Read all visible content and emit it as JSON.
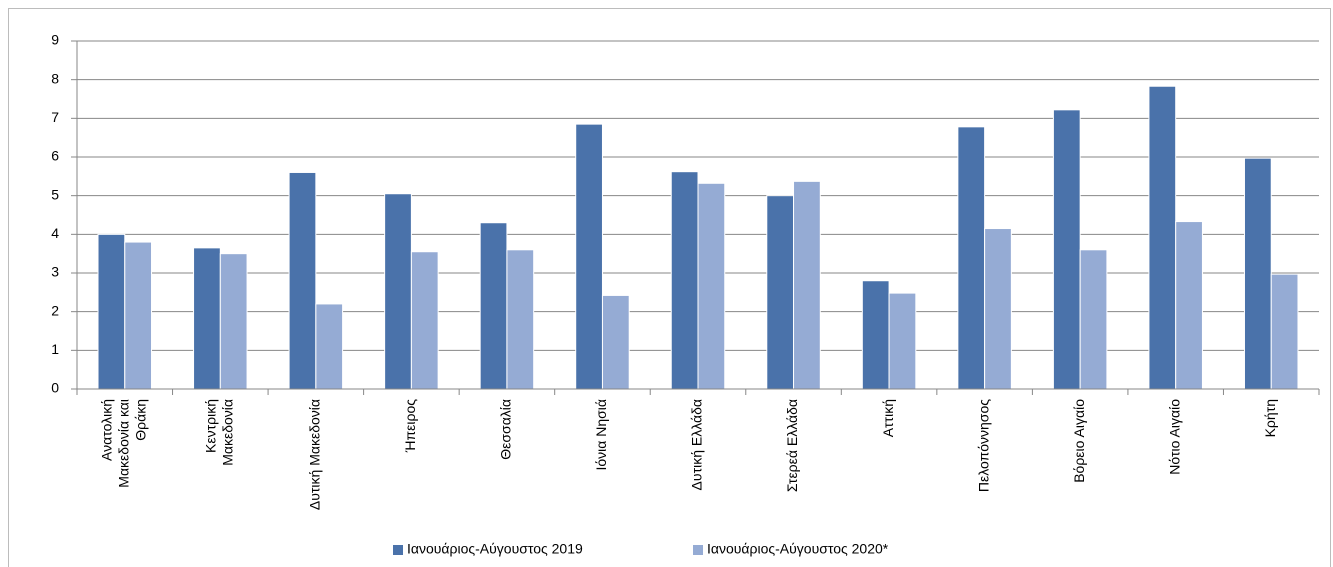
{
  "chart_data": {
    "type": "bar",
    "categories": [
      [
        "Ανατολική",
        "Μακεδονία και",
        "Θράκη"
      ],
      [
        "Κεντρική",
        "Μακεδονία"
      ],
      [
        "Δυτική Μακεδονία"
      ],
      [
        "Ήπειρος"
      ],
      [
        "Θεσσαλία"
      ],
      [
        "Ιόνια Νησιά"
      ],
      [
        "Δυτική Ελλάδα"
      ],
      [
        "Στερεά Ελλάδα"
      ],
      [
        "Αττική"
      ],
      [
        "Πελοπόννησος"
      ],
      [
        "Βόρειο Αιγαίο"
      ],
      [
        "Νότιο Αιγαίο"
      ],
      [
        "Κρήτη"
      ]
    ],
    "series": [
      {
        "name": "Ιανουάριος-Αύγουστος 2019",
        "color": "#4a72aa",
        "values": [
          4.0,
          3.65,
          5.6,
          5.05,
          4.3,
          6.85,
          5.62,
          5.0,
          2.8,
          6.78,
          7.22,
          7.83,
          5.97
        ]
      },
      {
        "name": "Ιανουάριος-Αύγουστος 2020*",
        "color": "#95abd4",
        "values": [
          3.8,
          3.5,
          2.2,
          3.55,
          3.6,
          2.42,
          5.32,
          5.37,
          2.48,
          4.15,
          3.6,
          4.33,
          2.97
        ]
      }
    ],
    "ylim": [
      0,
      9
    ],
    "yticks": [
      0,
      1,
      2,
      3,
      4,
      5,
      6,
      7,
      8,
      9
    ],
    "grid": true,
    "legend": "bottom"
  }
}
